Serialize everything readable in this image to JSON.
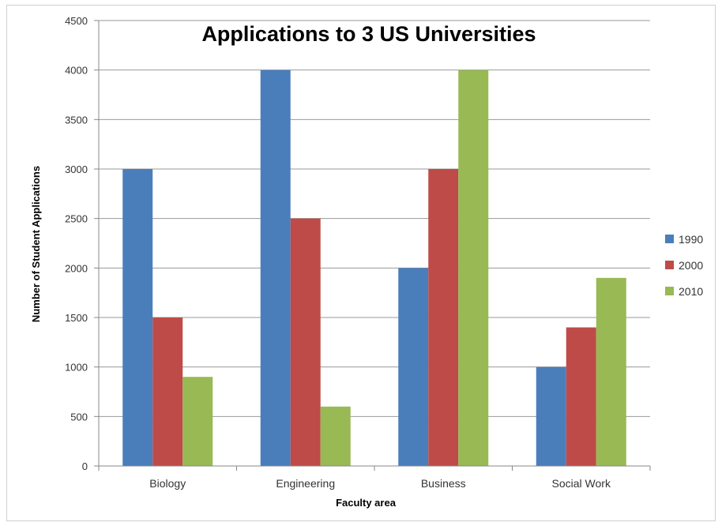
{
  "chart_data": {
    "type": "bar",
    "title": "Applications to 3 US Universities",
    "xlabel": "Faculty area",
    "ylabel": "Number of Student Applications",
    "categories": [
      "Biology",
      "Engineering",
      "Business",
      "Social Work"
    ],
    "series": [
      {
        "name": "1990",
        "color": "#4a7ebb",
        "values": [
          3000,
          4000,
          2000,
          1000
        ]
      },
      {
        "name": "2000",
        "color": "#be4b48",
        "values": [
          1500,
          2500,
          3000,
          1400
        ]
      },
      {
        "name": "2010",
        "color": "#98b954",
        "values": [
          900,
          600,
          4000,
          1900
        ]
      }
    ],
    "ylim": [
      0,
      4500
    ],
    "yticks": [
      0,
      500,
      1000,
      1500,
      2000,
      2500,
      3000,
      3500,
      4000,
      4500
    ],
    "grid": true,
    "legend_position": "right"
  }
}
